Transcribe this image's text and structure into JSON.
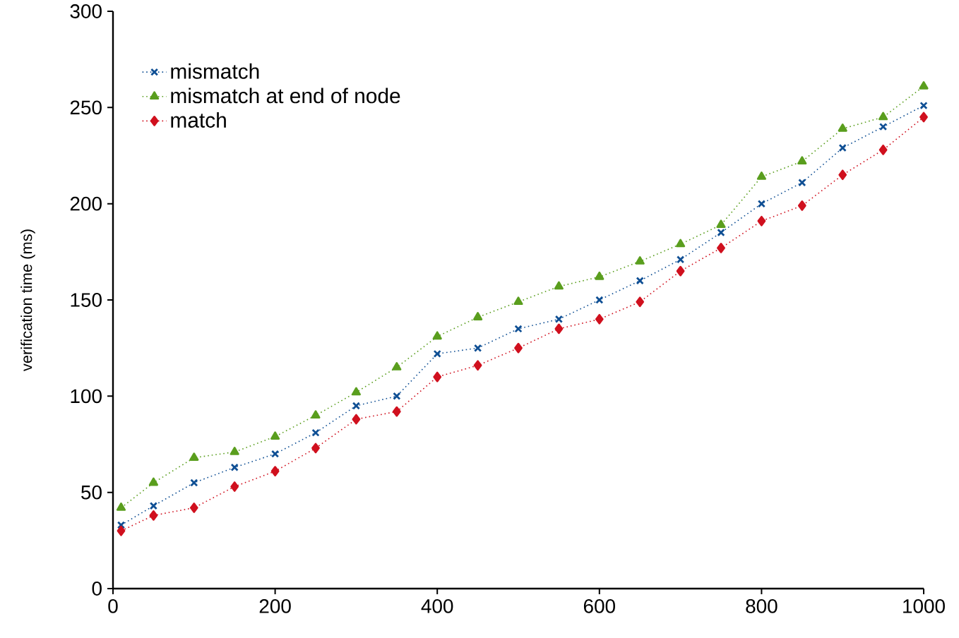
{
  "chart_data": {
    "type": "line",
    "ylabel": "verification time (ms)",
    "x": [
      10,
      50,
      100,
      150,
      200,
      250,
      300,
      350,
      400,
      450,
      500,
      550,
      600,
      650,
      700,
      750,
      800,
      850,
      900,
      950,
      1000
    ],
    "series": [
      {
        "name": "mismatch",
        "color": "#0f4f94",
        "marker": "cross",
        "values": [
          33,
          43,
          55,
          63,
          70,
          81,
          95,
          100,
          122,
          125,
          135,
          140,
          150,
          160,
          171,
          185,
          200,
          211,
          229,
          240,
          251
        ]
      },
      {
        "name": "mismatch at end of node",
        "color": "#5a9e1e",
        "marker": "triangle",
        "values": [
          42,
          55,
          68,
          71,
          79,
          90,
          102,
          115,
          131,
          141,
          149,
          157,
          162,
          170,
          179,
          189,
          214,
          222,
          239,
          245,
          261
        ]
      },
      {
        "name": "match",
        "color": "#d0101e",
        "marker": "diamond",
        "values": [
          30,
          38,
          42,
          53,
          61,
          73,
          88,
          92,
          110,
          116,
          125,
          135,
          140,
          149,
          165,
          177,
          191,
          199,
          215,
          228,
          245
        ]
      }
    ],
    "xlim": [
      0,
      1000
    ],
    "ylim": [
      0,
      300
    ],
    "xticks": [
      0,
      200,
      400,
      600,
      800,
      1000
    ],
    "yticks": [
      0,
      50,
      100,
      150,
      200,
      250,
      300
    ],
    "grid": false,
    "legend": "top left",
    "line_style": "dotted"
  }
}
